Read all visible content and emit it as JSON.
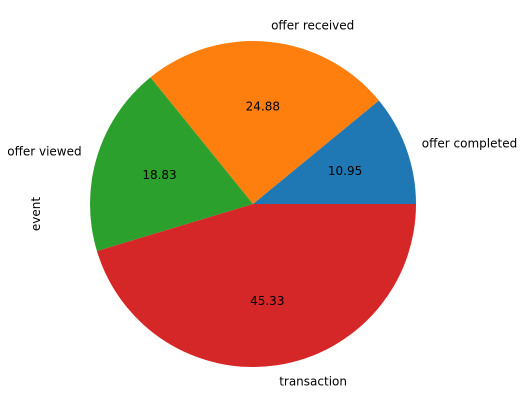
{
  "chart_data": {
    "type": "pie",
    "ylabel": "event",
    "labels": [
      "offer completed",
      "offer received",
      "offer viewed",
      "transaction"
    ],
    "values": [
      10.95,
      24.88,
      18.83,
      45.33
    ],
    "value_labels": [
      "10.95",
      "24.88",
      "18.83",
      "45.33"
    ],
    "colors": [
      "#1f77b4",
      "#ff7f0e",
      "#2ca02c",
      "#d62728"
    ],
    "start_angle_deg": 0,
    "direction": "counterclockwise"
  }
}
